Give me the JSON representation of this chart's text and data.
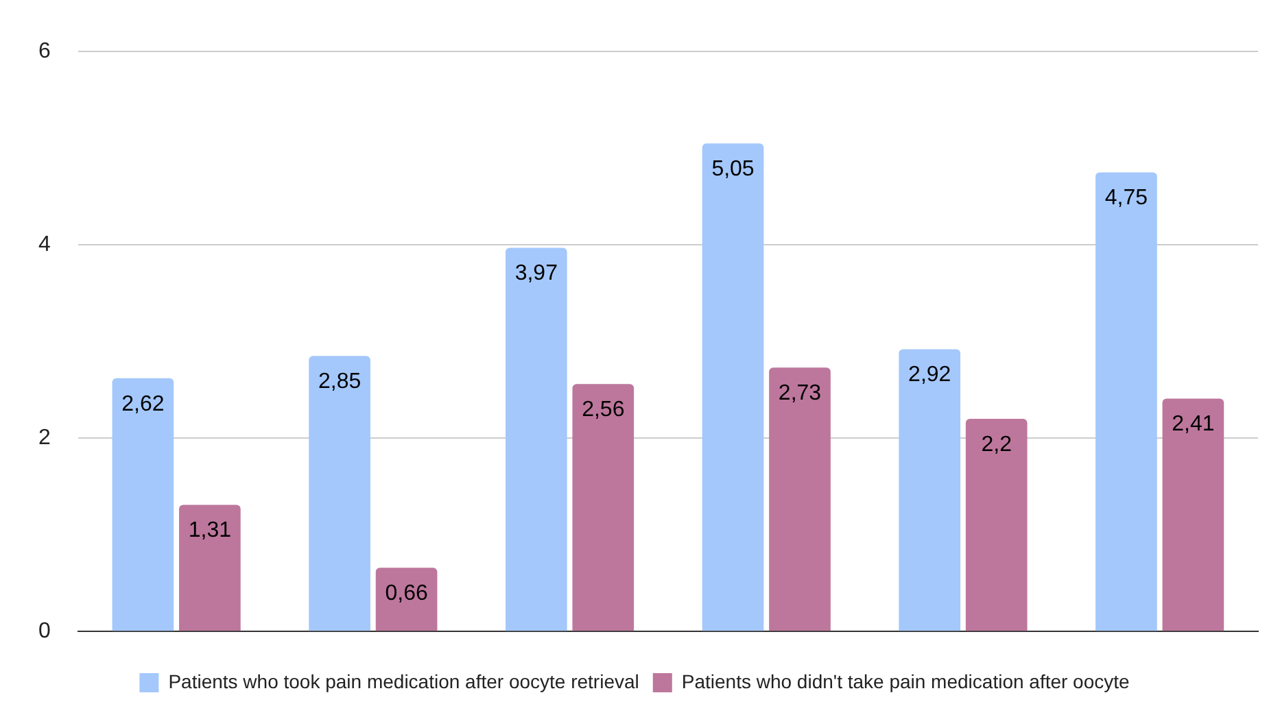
{
  "chart_data": {
    "type": "bar",
    "categories": [
      null,
      null,
      null,
      null,
      null,
      null
    ],
    "series": [
      {
        "name": "Patients who took pain medication after oocyte retrieval",
        "color": "#a4c8fb",
        "values": [
          2.62,
          2.85,
          3.97,
          5.05,
          2.92,
          4.75
        ],
        "value_labels": [
          "2,62",
          "2,85",
          "3,97",
          "5,05",
          "2,92",
          "4,75"
        ]
      },
      {
        "name": "Patients who didn't take pain medication after oocyte",
        "color": "#bd779c",
        "values": [
          1.31,
          0.66,
          2.56,
          2.73,
          2.2,
          2.41
        ],
        "value_labels": [
          "1,31",
          "0,66",
          "2,56",
          "2,73",
          "2,2",
          "2,41"
        ]
      }
    ],
    "ylim": [
      0,
      6
    ],
    "yticks": [
      0,
      2,
      4,
      6
    ],
    "grid": "y",
    "legend": "bottom"
  }
}
